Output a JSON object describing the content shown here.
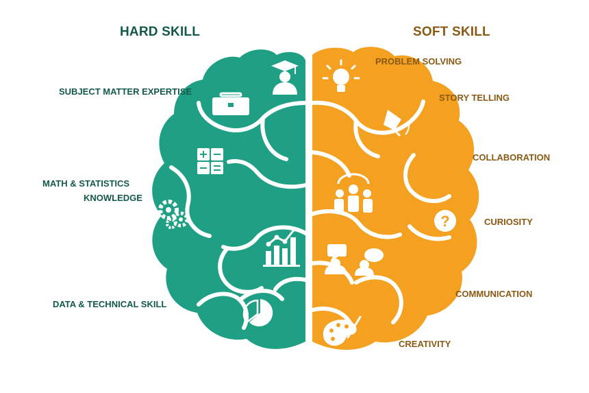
{
  "headings": {
    "hard": "HARD SKILL",
    "soft": "SOFT SKILL"
  },
  "hard_skills": [
    "SUBJECT MATTER EXPERTISE",
    "MATH & STATISTICS",
    "KNOWLEDGE",
    "DATA & TECHNICAL SKILL"
  ],
  "soft_skills": [
    "PROBLEM SOLVING",
    "STORY TELLING",
    "COLLABORATION",
    "CURIOSITY",
    "COMMUNICATION",
    "CREATIVITY"
  ],
  "colors": {
    "hard": "#1fa085",
    "soft": "#f4a021",
    "hard_text": "#13594a",
    "soft_text": "#8a5a14"
  },
  "icons": {
    "hard": [
      "graduate-icon",
      "briefcase-icon",
      "calculator-icon",
      "gears-icon",
      "line-bar-chart-icon",
      "pie-chart-icon"
    ],
    "soft": [
      "lightbulb-icon",
      "pen-nib-icon",
      "team-icon",
      "question-mark-icon",
      "conversation-icon",
      "palette-icon"
    ]
  }
}
